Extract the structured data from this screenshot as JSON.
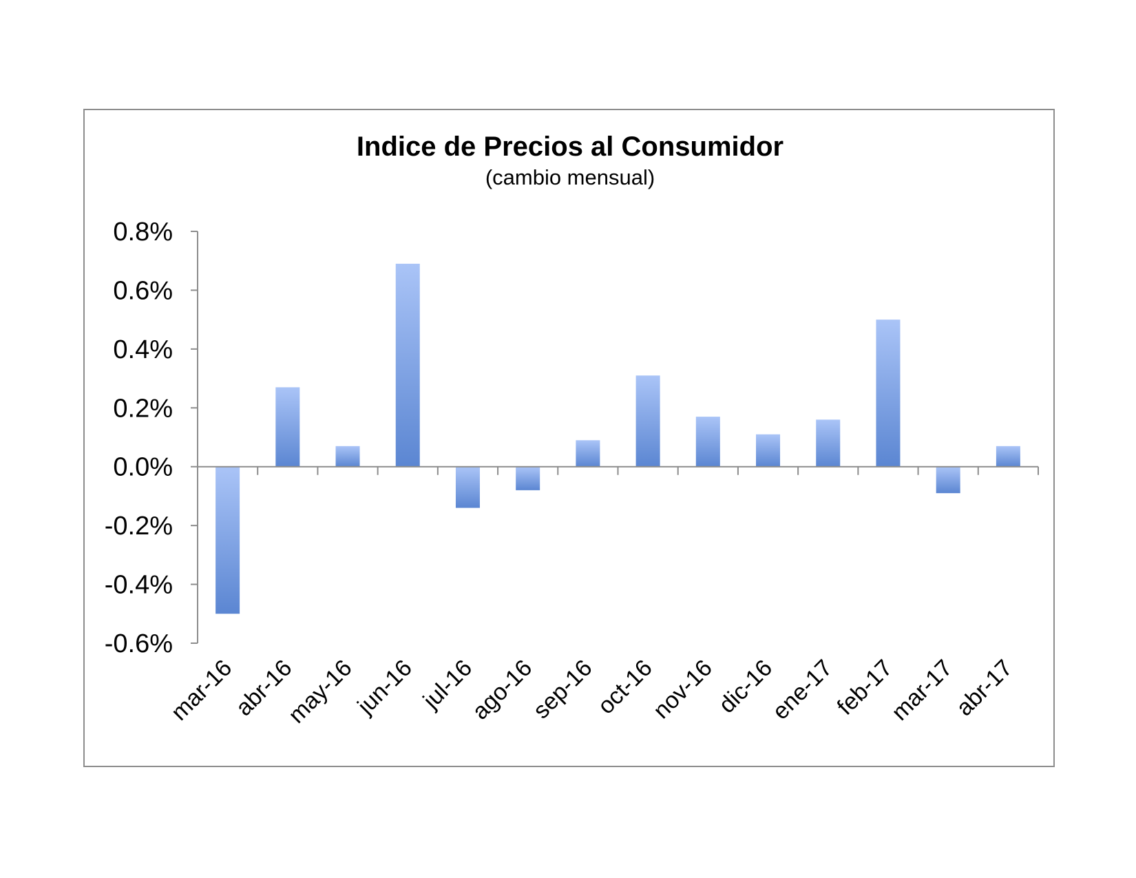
{
  "chart_data": {
    "type": "bar",
    "title": "Indice de Precios al Consumidor",
    "subtitle": "(cambio mensual)",
    "xlabel": "",
    "ylabel": "",
    "categories": [
      "mar-16",
      "abr-16",
      "may-16",
      "jun-16",
      "jul-16",
      "ago-16",
      "sep-16",
      "oct-16",
      "nov-16",
      "dic-16",
      "ene-17",
      "feb-17",
      "mar-17",
      "abr-17"
    ],
    "values": [
      -0.5,
      0.27,
      0.07,
      0.69,
      -0.14,
      -0.08,
      0.09,
      0.31,
      0.17,
      0.11,
      0.16,
      0.5,
      -0.09,
      0.07
    ],
    "ylim": [
      -0.6,
      0.8
    ],
    "yticks": [
      "0.8%",
      "0.6%",
      "0.4%",
      "0.2%",
      "0.0%",
      "-0.2%",
      "-0.4%",
      "-0.6%"
    ],
    "ytick_values": [
      0.8,
      0.6,
      0.4,
      0.2,
      0.0,
      -0.2,
      -0.4,
      -0.6
    ],
    "grid": false,
    "legend": "none",
    "bar_color_light": "#aac4f7",
    "bar_color_dark": "#5b86d2"
  }
}
